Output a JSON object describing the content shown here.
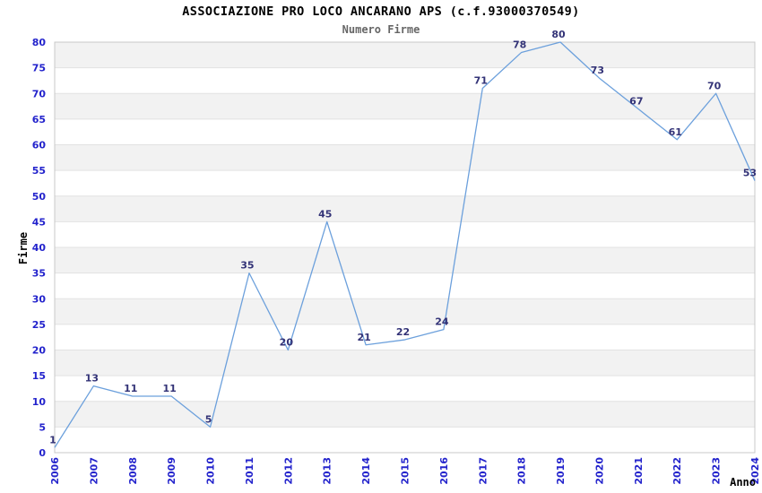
{
  "chart_data": {
    "type": "line",
    "title": "ASSOCIAZIONE PRO LOCO ANCARANO APS (c.f.93000370549)",
    "subtitle": "Numero Firme",
    "xlabel": "Anno",
    "ylabel": "Firme",
    "categories": [
      "2006",
      "2007",
      "2008",
      "2009",
      "2010",
      "2011",
      "2012",
      "2013",
      "2014",
      "2015",
      "2016",
      "2017",
      "2018",
      "2019",
      "2020",
      "2021",
      "2022",
      "2023",
      "2024"
    ],
    "series": [
      {
        "name": "Numero Firme",
        "values": [
          1,
          13,
          11,
          11,
          5,
          35,
          20,
          45,
          21,
          22,
          24,
          71,
          78,
          80,
          73,
          67,
          61,
          70,
          53
        ]
      }
    ],
    "ylim": [
      0,
      80
    ],
    "ytick_interval": 5,
    "grid": "horizontal gridlines with alternating shaded bands every 5 units",
    "legend": "none",
    "data_labels": "shown above each point",
    "colors": {
      "line": "#6ca0dc",
      "data_label": "#333377",
      "tick_label": "#2323cc",
      "band": "#f2f2f2",
      "gridline": "#e2e2e2",
      "plot_border": "#c8c8c8",
      "title": "#000000",
      "subtitle": "#666666",
      "axis_label": "#000000",
      "background": "#ffffff"
    }
  }
}
